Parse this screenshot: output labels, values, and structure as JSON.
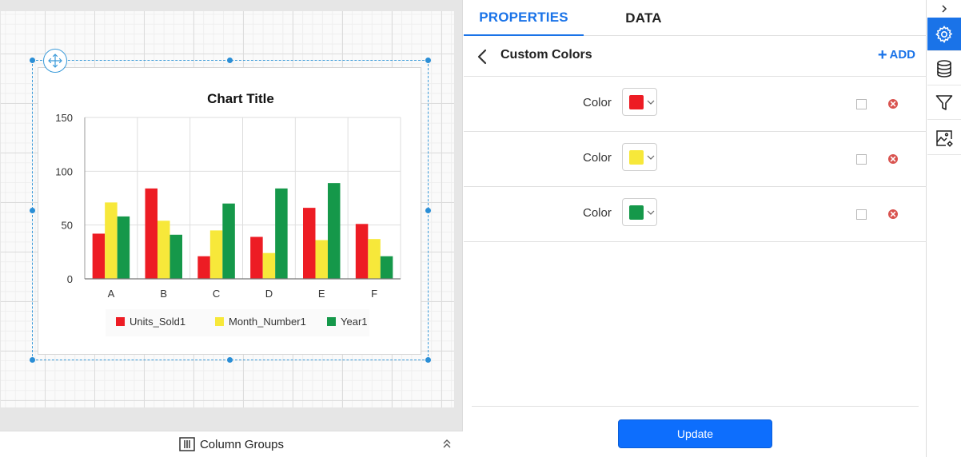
{
  "design_canvas": {
    "column_groups_label": "Column Groups",
    "icons": {
      "move": "move-arrows-icon",
      "column_groups": "columns-icon",
      "collapse": "double-chevron-up-icon"
    }
  },
  "chart_data": {
    "type": "bar",
    "title": "Chart Title",
    "categories": [
      "A",
      "B",
      "C",
      "D",
      "E",
      "F"
    ],
    "series": [
      {
        "name": "Units_Sold1",
        "color": "#ed1c24",
        "values": [
          42,
          84,
          21,
          39,
          66,
          51
        ]
      },
      {
        "name": "Month_Number1",
        "color": "#f7e83a",
        "values": [
          71,
          54,
          45,
          24,
          36,
          37
        ]
      },
      {
        "name": "Year1",
        "color": "#15984a",
        "values": [
          58,
          41,
          70,
          84,
          89,
          21
        ]
      }
    ],
    "ylim": [
      0,
      150
    ],
    "yticks": [
      0,
      50,
      100,
      150
    ],
    "xlabel": "",
    "ylabel": "",
    "grid": true,
    "legend_position": "bottom"
  },
  "panel": {
    "tabs": [
      {
        "label": "PROPERTIES",
        "active": true
      },
      {
        "label": "DATA",
        "active": false
      }
    ],
    "section_title": "Custom Colors",
    "add_label": "ADD",
    "color_rows": [
      {
        "label": "Color",
        "color": "#ed1c24"
      },
      {
        "label": "Color",
        "color": "#f7e83a"
      },
      {
        "label": "Color",
        "color": "#15984a"
      }
    ],
    "update_label": "Update",
    "icons": {
      "back": "chevron-left-icon",
      "add": "plus-icon",
      "dropdown": "chevron-down-icon",
      "checkbox": "checkbox-icon",
      "delete": "close-circle-icon"
    }
  },
  "toolbar": {
    "items": [
      {
        "name": "properties",
        "icon": "gear-icon",
        "active": true
      },
      {
        "name": "data",
        "icon": "database-icon",
        "active": false
      },
      {
        "name": "filter",
        "icon": "filter-icon",
        "active": false
      },
      {
        "name": "image-settings",
        "icon": "image-settings-icon",
        "active": false
      }
    ],
    "collapse_icon": "chevron-right-icon"
  },
  "colors": {
    "accent": "#1a73e8",
    "primary_button": "#0d6efd",
    "selection": "#3a9ad9"
  }
}
